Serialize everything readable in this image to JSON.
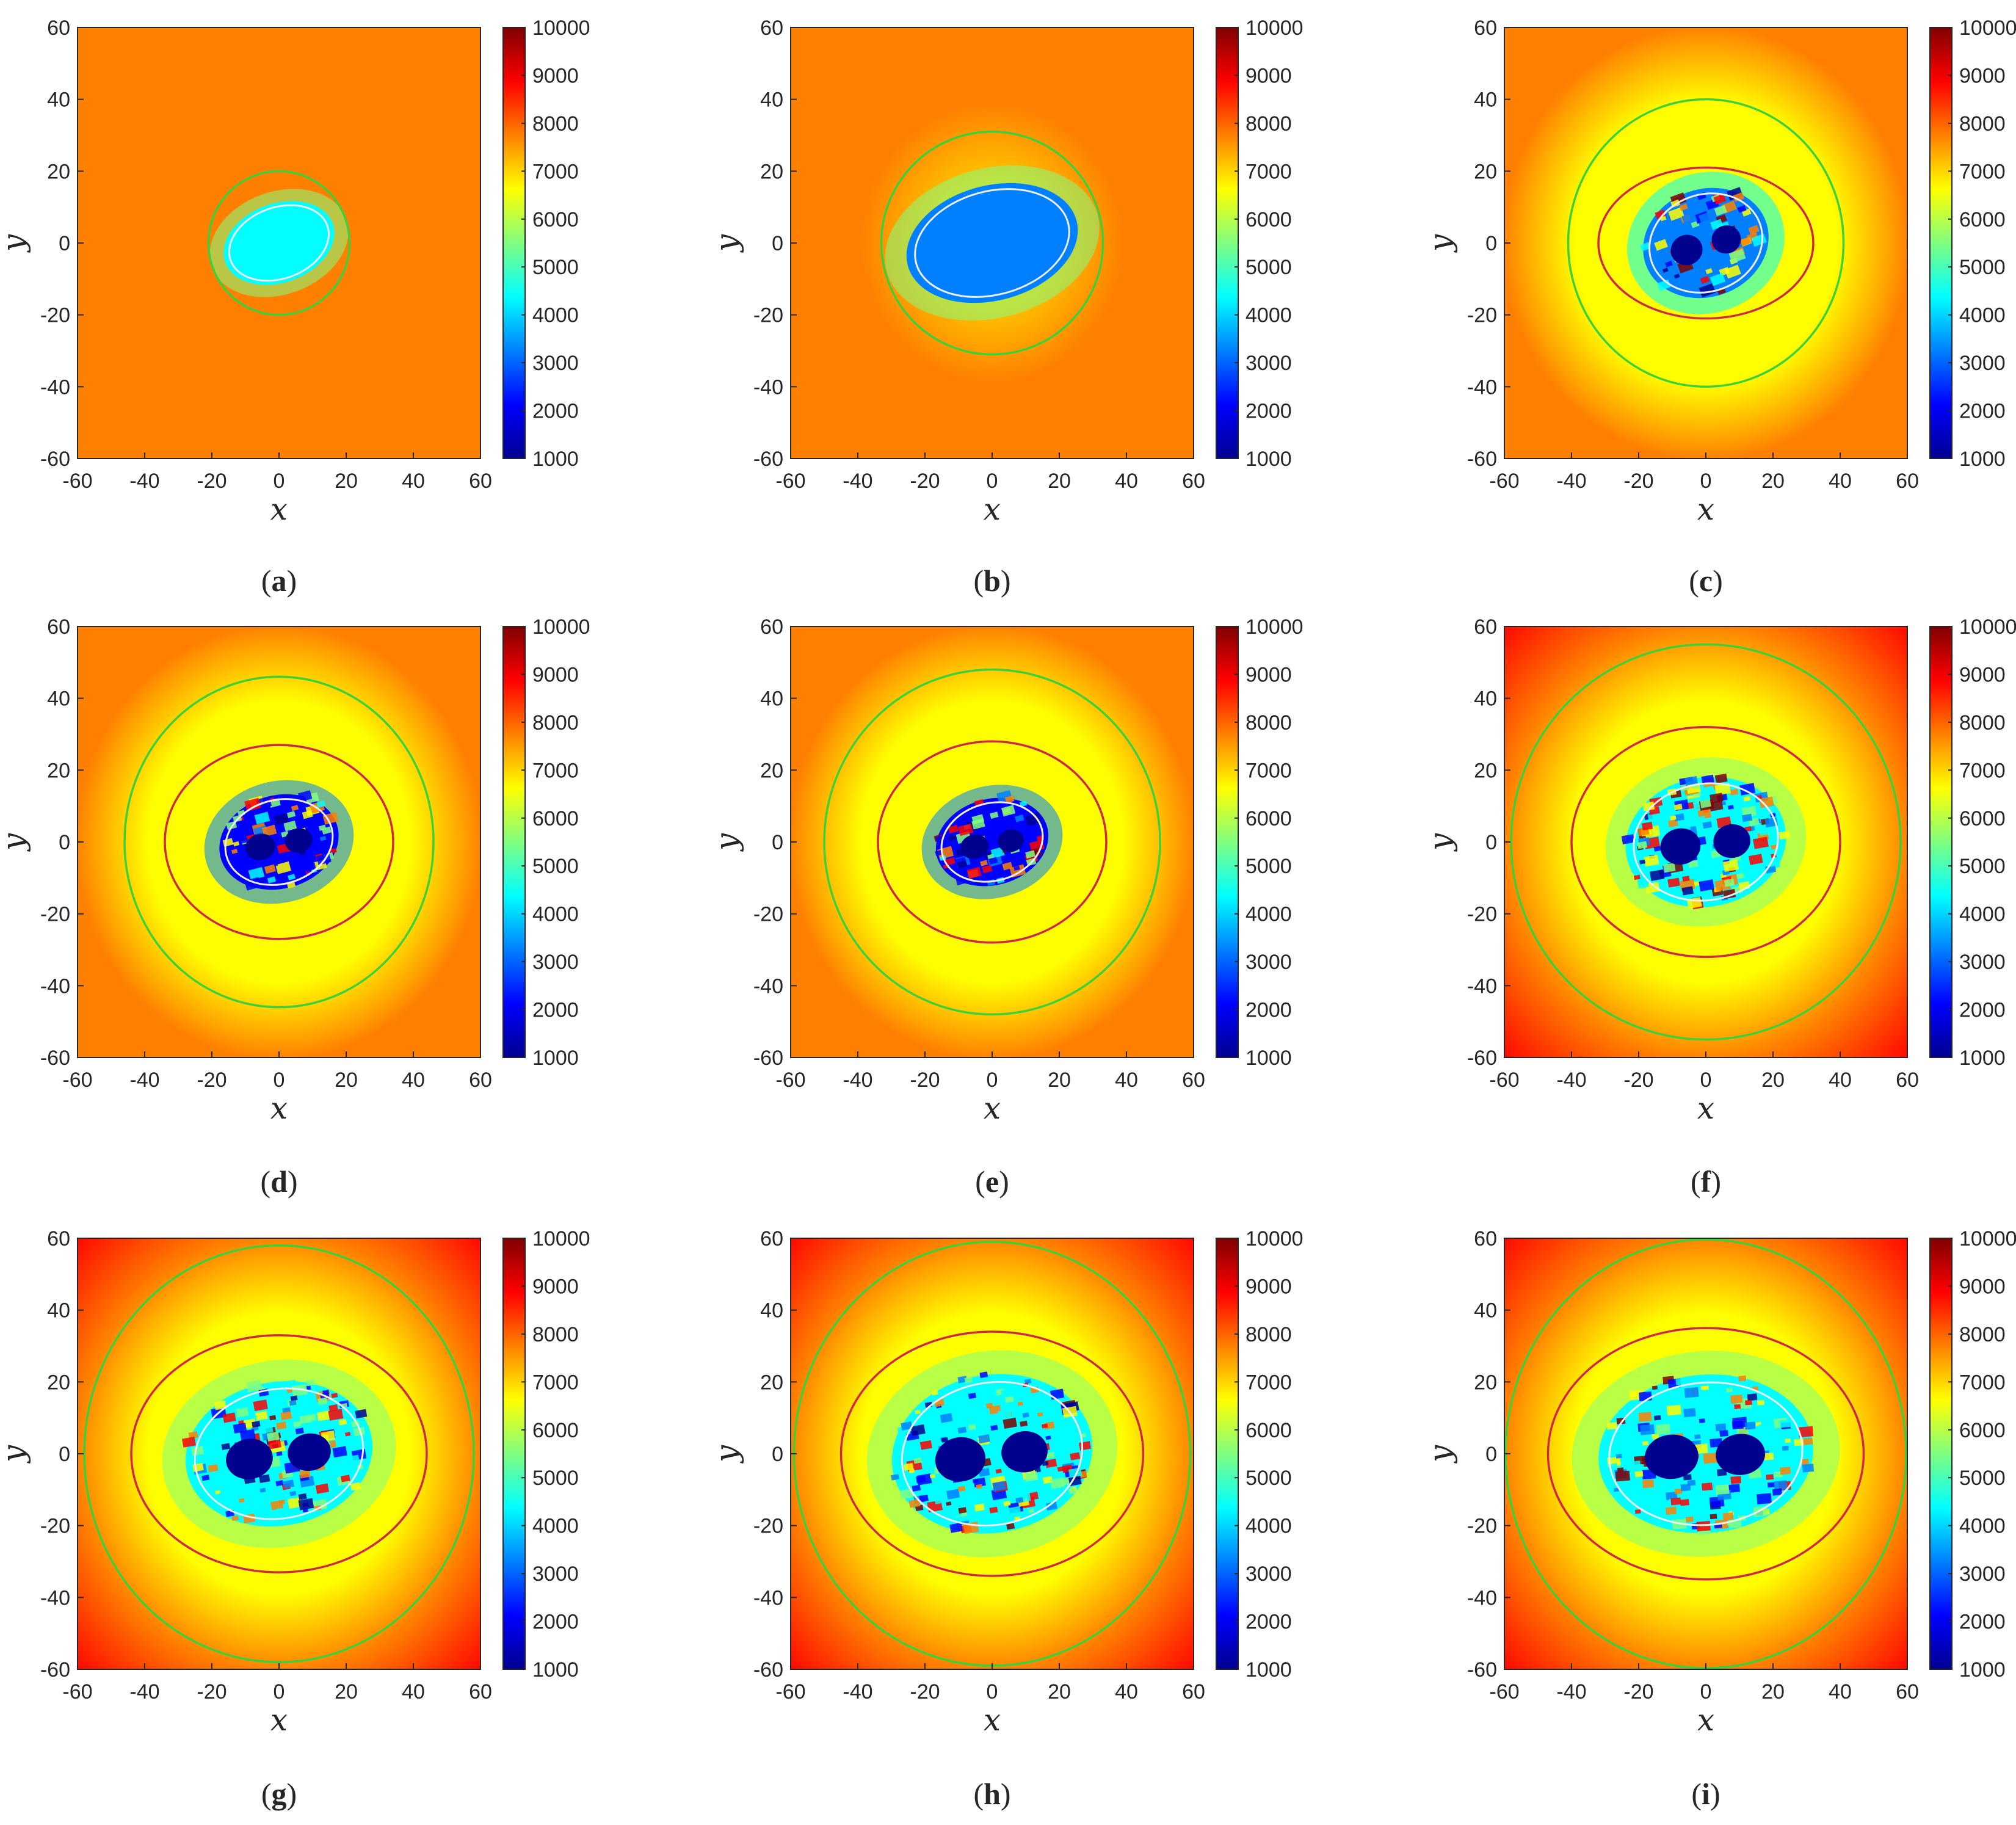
{
  "colors": {
    "jet": [
      "#00008f",
      "#0000ff",
      "#0080ff",
      "#00ffff",
      "#80ff80",
      "#ffff00",
      "#ff8000",
      "#ff0000",
      "#800000"
    ],
    "outer_contour": "#3ad13a",
    "middle_contour": "#d0284a",
    "inner_contour": "#eeeeee",
    "axis": "#262626"
  },
  "chart_data": [
    {
      "type": "heatmap",
      "panel": "a",
      "caption_label": "a",
      "xlabel": "x",
      "ylabel": "y",
      "xlim": [
        -60,
        60
      ],
      "ylim": [
        -60,
        60
      ],
      "x_ticks": [
        "-60",
        "-40",
        "-20",
        "0",
        "20",
        "40",
        "60"
      ],
      "y_ticks": [
        "60",
        "40",
        "20",
        "0",
        "-20",
        "-40",
        "-60"
      ],
      "colorbar": {
        "range": [
          1000,
          10000
        ],
        "ticks": [
          "10000",
          "9000",
          "8000",
          "7000",
          "6000",
          "5000",
          "4000",
          "3000",
          "2000",
          "1000"
        ]
      },
      "field": {
        "background": 7300,
        "edge": 7300,
        "ring": 7300,
        "core": 4300
      },
      "core": {
        "rx": 17,
        "ry": 11,
        "rotation_deg": -20
      },
      "contours": [
        {
          "kind": "outer",
          "rx": 21,
          "ry": 20
        }
      ]
    },
    {
      "type": "heatmap",
      "panel": "b",
      "caption_label": "b",
      "xlabel": "x",
      "ylabel": "y",
      "xlim": [
        -60,
        60
      ],
      "ylim": [
        -60,
        60
      ],
      "x_ticks": [
        "-60",
        "-40",
        "-20",
        "0",
        "20",
        "40",
        "60"
      ],
      "y_ticks": [
        "60",
        "40",
        "20",
        "0",
        "-20",
        "-40",
        "-60"
      ],
      "colorbar": {
        "range": [
          1000,
          10000
        ],
        "ticks": [
          "10000",
          "9000",
          "8000",
          "7000",
          "6000",
          "5000",
          "4000",
          "3000",
          "2000",
          "1000"
        ]
      },
      "field": {
        "background": 7300,
        "edge": 7400,
        "ring": 7000,
        "core": 3800
      },
      "core": {
        "rx": 26,
        "ry": 16,
        "rotation_deg": -15
      },
      "contours": [
        {
          "kind": "outer",
          "rx": 33,
          "ry": 31
        }
      ]
    },
    {
      "type": "heatmap",
      "panel": "c",
      "caption_label": "c",
      "xlabel": "x",
      "ylabel": "y",
      "xlim": [
        -60,
        60
      ],
      "ylim": [
        -60,
        60
      ],
      "x_ticks": [
        "-60",
        "-40",
        "-20",
        "0",
        "20",
        "40",
        "60"
      ],
      "y_ticks": [
        "60",
        "40",
        "20",
        "0",
        "-20",
        "-40",
        "-60"
      ],
      "colorbar": {
        "range": [
          1000,
          10000
        ],
        "ticks": [
          "10000",
          "9000",
          "8000",
          "7000",
          "6000",
          "5000",
          "4000",
          "3000",
          "2000",
          "1000"
        ]
      },
      "field": {
        "background": 7200,
        "edge": 7500,
        "ring": 6500,
        "core": 2700
      },
      "core": {
        "rx": 19,
        "ry": 15,
        "rotation_deg": -20
      },
      "contours": [
        {
          "kind": "outer",
          "rx": 41,
          "ry": 40
        },
        {
          "kind": "middle",
          "rx": 32,
          "ry": 21
        }
      ]
    },
    {
      "type": "heatmap",
      "panel": "d",
      "caption_label": "d",
      "xlabel": "x",
      "ylabel": "y",
      "xlim": [
        -60,
        60
      ],
      "ylim": [
        -60,
        60
      ],
      "x_ticks": [
        "-60",
        "-40",
        "-20",
        "0",
        "20",
        "40",
        "60"
      ],
      "y_ticks": [
        "60",
        "40",
        "20",
        "0",
        "-20",
        "-40",
        "-60"
      ],
      "colorbar": {
        "range": [
          1000,
          10000
        ],
        "ticks": [
          "10000",
          "9000",
          "8000",
          "7000",
          "6000",
          "5000",
          "4000",
          "3000",
          "2000",
          "1000"
        ]
      },
      "field": {
        "background": 7500,
        "edge": 7900,
        "ring": 6600,
        "core": 1600
      },
      "core": {
        "rx": 18,
        "ry": 13,
        "rotation_deg": -15
      },
      "contours": [
        {
          "kind": "outer",
          "rx": 46,
          "ry": 46
        },
        {
          "kind": "middle",
          "rx": 34,
          "ry": 27
        }
      ]
    },
    {
      "type": "heatmap",
      "panel": "e",
      "caption_label": "e",
      "xlabel": "x",
      "ylabel": "y",
      "xlim": [
        -60,
        60
      ],
      "ylim": [
        -60,
        60
      ],
      "x_ticks": [
        "-60",
        "-40",
        "-20",
        "0",
        "20",
        "40",
        "60"
      ],
      "y_ticks": [
        "60",
        "40",
        "20",
        "0",
        "-20",
        "-40",
        "-60"
      ],
      "colorbar": {
        "range": [
          1000,
          10000
        ],
        "ticks": [
          "10000",
          "9000",
          "8000",
          "7000",
          "6000",
          "5000",
          "4000",
          "3000",
          "2000",
          "1000"
        ]
      },
      "field": {
        "background": 7600,
        "edge": 8000,
        "ring": 6600,
        "core": 1600
      },
      "core": {
        "rx": 17,
        "ry": 12,
        "rotation_deg": -15
      },
      "contours": [
        {
          "kind": "outer",
          "rx": 50,
          "ry": 48
        },
        {
          "kind": "middle",
          "rx": 34,
          "ry": 28
        }
      ]
    },
    {
      "type": "heatmap",
      "panel": "f",
      "caption_label": "f",
      "xlabel": "x",
      "ylabel": "y",
      "xlim": [
        -60,
        60
      ],
      "ylim": [
        -60,
        60
      ],
      "x_ticks": [
        "-60",
        "-40",
        "-20",
        "0",
        "20",
        "40",
        "60"
      ],
      "y_ticks": [
        "60",
        "40",
        "20",
        "0",
        "-20",
        "-40",
        "-60"
      ],
      "colorbar": {
        "range": [
          1000,
          10000
        ],
        "ticks": [
          "10000",
          "9000",
          "8000",
          "7000",
          "6000",
          "5000",
          "4000",
          "3000",
          "2000",
          "1000"
        ]
      },
      "field": {
        "background": 7800,
        "edge": 8400,
        "ring": 6600,
        "core": 4400
      },
      "core": {
        "rx": 24,
        "ry": 18,
        "rotation_deg": -10
      },
      "contours": [
        {
          "kind": "outer",
          "rx": 58,
          "ry": 55
        },
        {
          "kind": "middle",
          "rx": 40,
          "ry": 32
        }
      ]
    },
    {
      "type": "heatmap",
      "panel": "g",
      "caption_label": "g",
      "xlabel": "x",
      "ylabel": "y",
      "xlim": [
        -60,
        60
      ],
      "ylim": [
        -60,
        60
      ],
      "x_ticks": [
        "-60",
        "-40",
        "-20",
        "0",
        "20",
        "40",
        "60"
      ],
      "y_ticks": [
        "60",
        "40",
        "20",
        "0",
        "-20",
        "-40",
        "-60"
      ],
      "colorbar": {
        "range": [
          1000,
          10000
        ],
        "ticks": [
          "10000",
          "9000",
          "8000",
          "7000",
          "6000",
          "5000",
          "4000",
          "3000",
          "2000",
          "1000"
        ]
      },
      "field": {
        "background": 7800,
        "edge": 8500,
        "ring": 6600,
        "core": 4400
      },
      "core": {
        "rx": 28,
        "ry": 20,
        "rotation_deg": -10
      },
      "contours": [
        {
          "kind": "outer",
          "rx": 58,
          "ry": 58
        },
        {
          "kind": "middle",
          "rx": 44,
          "ry": 33
        }
      ]
    },
    {
      "type": "heatmap",
      "panel": "h",
      "caption_label": "h",
      "xlabel": "x",
      "ylabel": "y",
      "xlim": [
        -60,
        60
      ],
      "ylim": [
        -60,
        60
      ],
      "x_ticks": [
        "-60",
        "-40",
        "-20",
        "0",
        "20",
        "40",
        "60"
      ],
      "y_ticks": [
        "60",
        "40",
        "20",
        "0",
        "-20",
        "-40",
        "-60"
      ],
      "colorbar": {
        "range": [
          1000,
          10000
        ],
        "ticks": [
          "10000",
          "9000",
          "8000",
          "7000",
          "6000",
          "5000",
          "4000",
          "3000",
          "2000",
          "1000"
        ]
      },
      "field": {
        "background": 7900,
        "edge": 8700,
        "ring": 6700,
        "core": 4400
      },
      "core": {
        "rx": 30,
        "ry": 22,
        "rotation_deg": -10
      },
      "contours": [
        {
          "kind": "outer",
          "rx": 59,
          "ry": 59
        },
        {
          "kind": "middle",
          "rx": 45,
          "ry": 34
        }
      ]
    },
    {
      "type": "heatmap",
      "panel": "i",
      "caption_label": "i",
      "xlabel": "x",
      "ylabel": "y",
      "xlim": [
        -60,
        60
      ],
      "ylim": [
        -60,
        60
      ],
      "x_ticks": [
        "-60",
        "-40",
        "-20",
        "0",
        "20",
        "40",
        "60"
      ],
      "y_ticks": [
        "60",
        "40",
        "20",
        "0",
        "-20",
        "-40",
        "-60"
      ],
      "colorbar": {
        "range": [
          1000,
          10000
        ],
        "ticks": [
          "10000",
          "9000",
          "8000",
          "7000",
          "6000",
          "5000",
          "4000",
          "3000",
          "2000",
          "1000"
        ]
      },
      "field": {
        "background": 8000,
        "edge": 8900,
        "ring": 6800,
        "core": 4400
      },
      "core": {
        "rx": 32,
        "ry": 22,
        "rotation_deg": -5
      },
      "contours": [
        {
          "kind": "outer",
          "rx": 60,
          "ry": 60
        },
        {
          "kind": "middle",
          "rx": 47,
          "ry": 35
        }
      ]
    }
  ]
}
